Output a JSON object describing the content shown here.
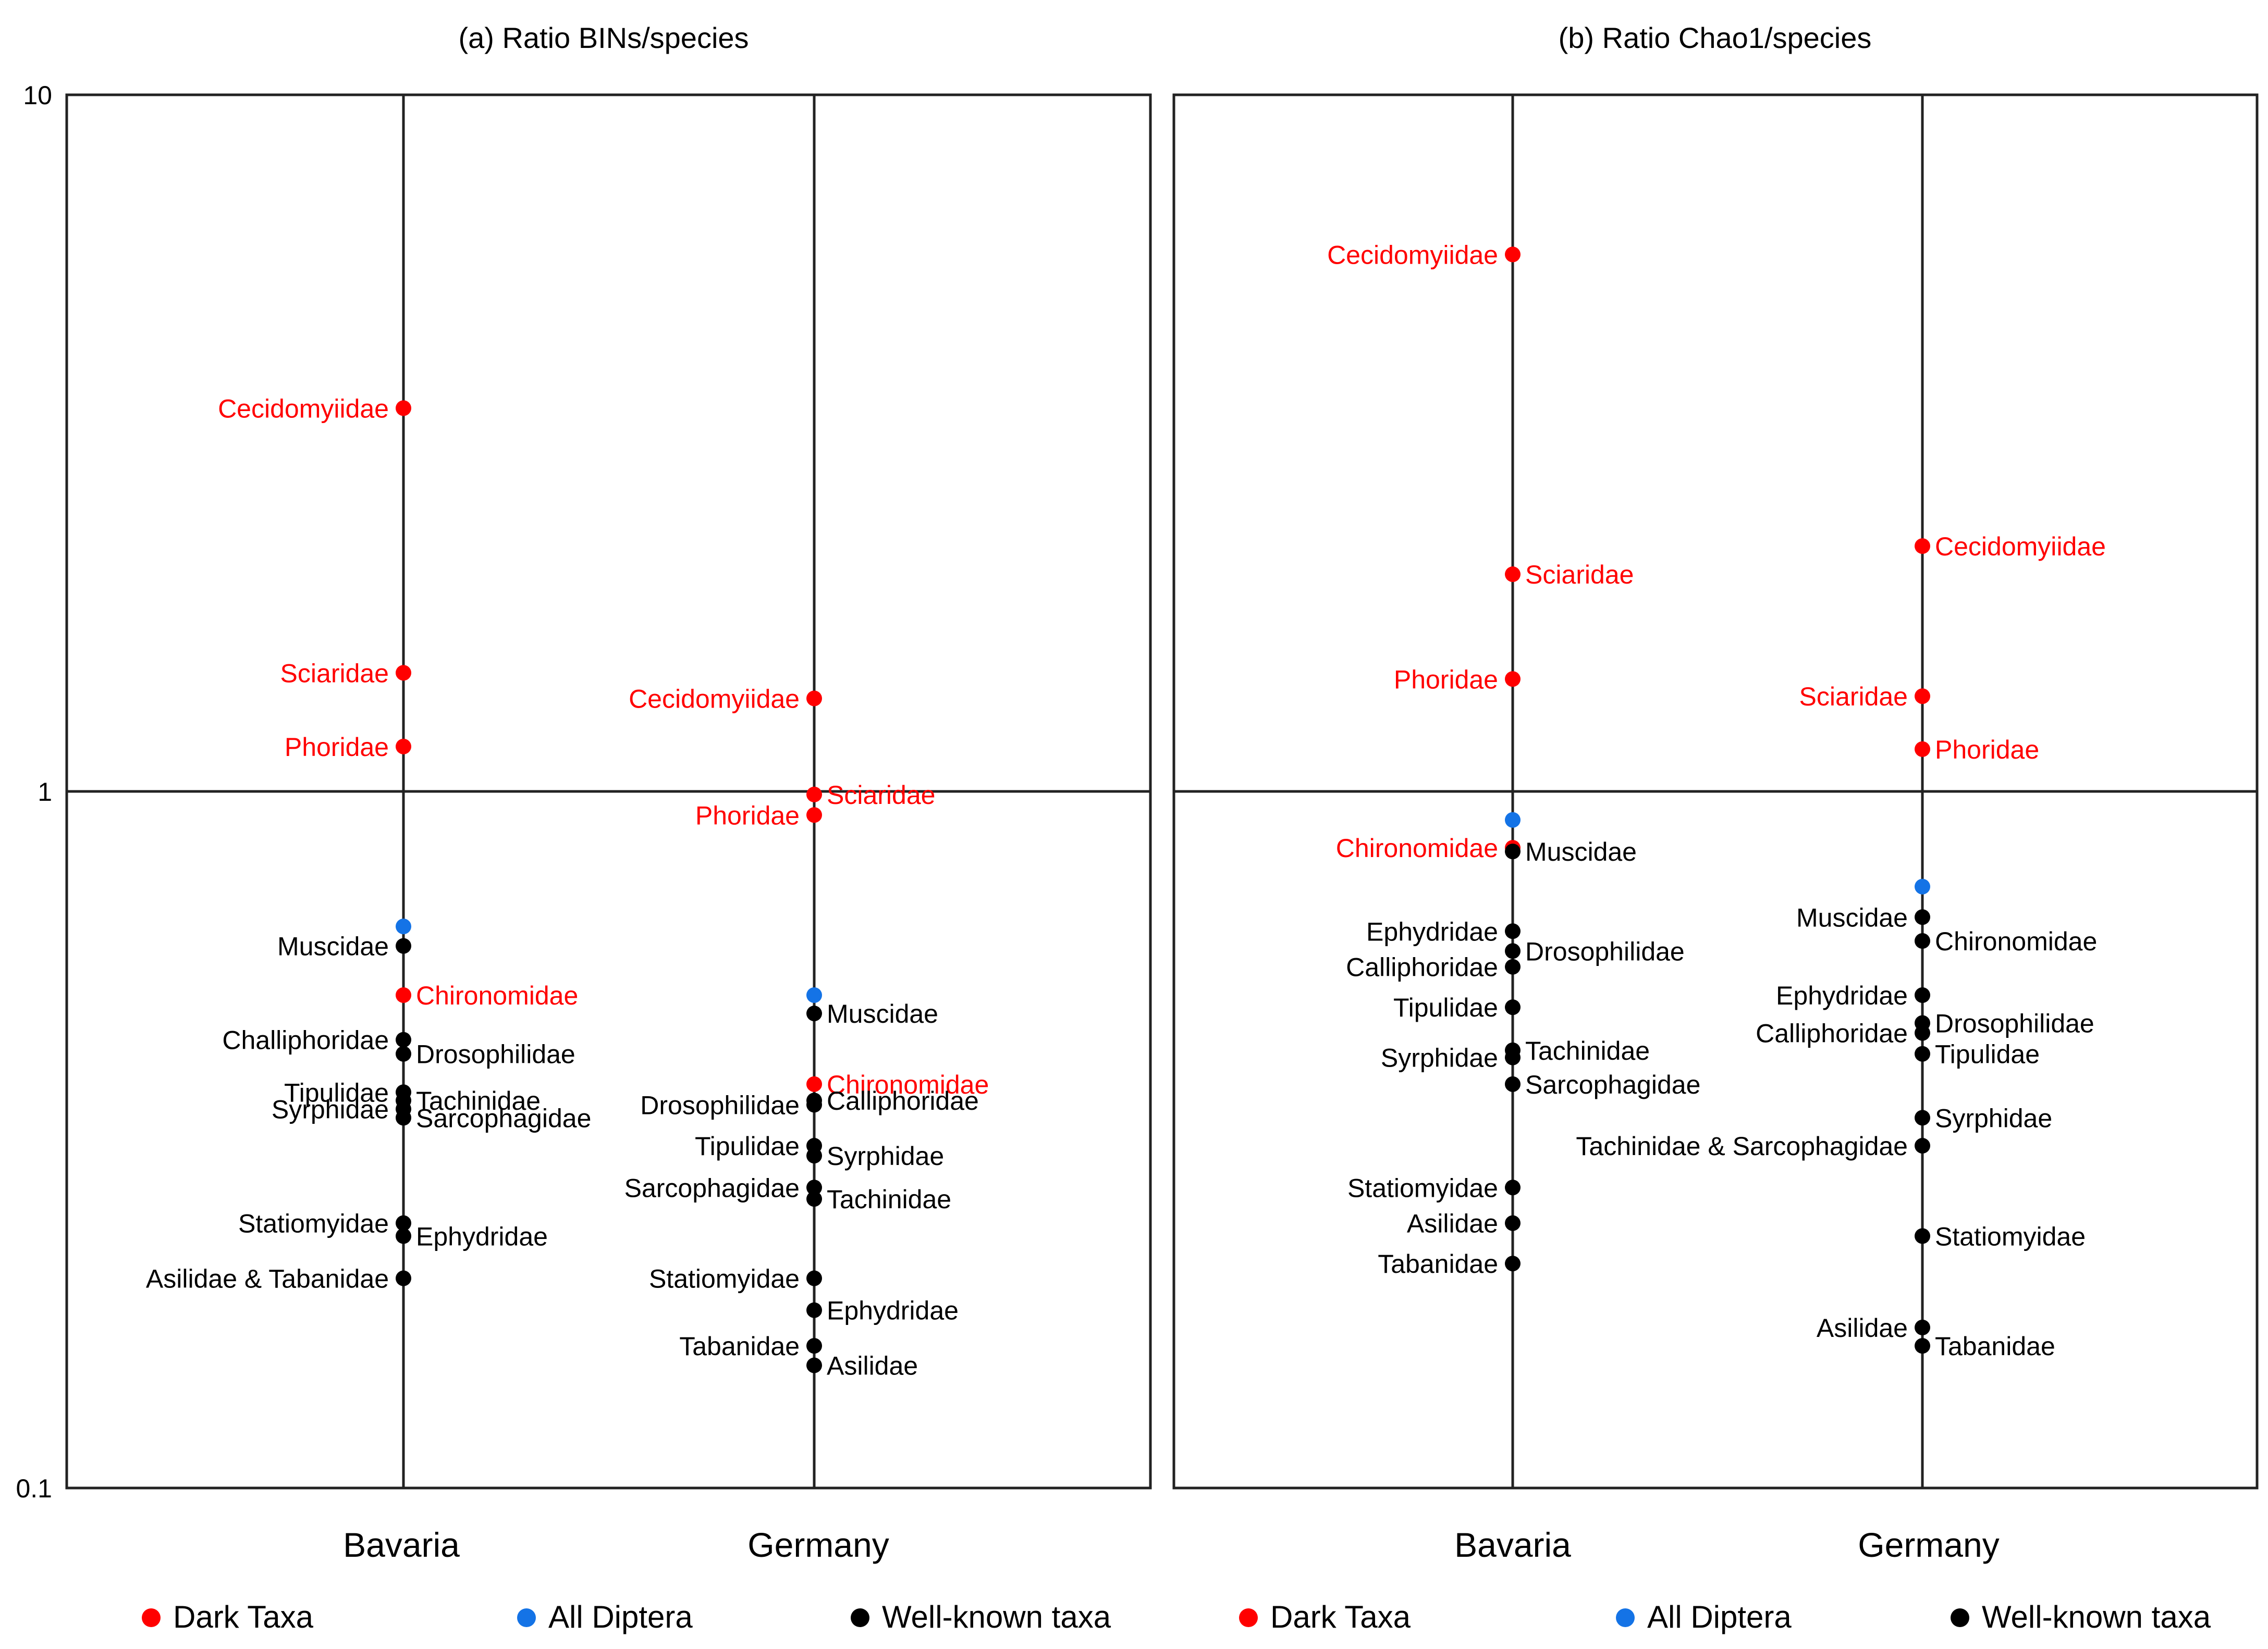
{
  "colors": {
    "dark": "#ff0000",
    "all": "#1473e6",
    "known": "#000000",
    "frame": "#222222"
  },
  "legend": [
    {
      "key": "dark",
      "label": "Dark Taxa"
    },
    {
      "key": "all",
      "label": "All Diptera"
    },
    {
      "key": "known",
      "label": "Well-known taxa"
    }
  ],
  "y_axis": {
    "ticks": [
      {
        "value": 10,
        "label": "10"
      },
      {
        "value": 1,
        "label": "1"
      },
      {
        "value": 0.1,
        "label": "0.1"
      }
    ]
  },
  "chart_data": [
    {
      "type": "scatter",
      "title": "(a) Ratio BINs/species",
      "categories": [
        "Bavaria",
        "Germany"
      ],
      "yscale": "log",
      "ylim": [
        0.1,
        10
      ],
      "reference_line": 1,
      "series": [
        {
          "name": "Dark Taxa",
          "group": "dark",
          "points": [
            {
              "x": "Bavaria",
              "label": "Cecidomyiidae",
              "value": 3.55,
              "side": "left"
            },
            {
              "x": "Bavaria",
              "label": "Sciaridae",
              "value": 1.48,
              "side": "left"
            },
            {
              "x": "Bavaria",
              "label": "Phoridae",
              "value": 1.16,
              "side": "left"
            },
            {
              "x": "Bavaria",
              "label": "Chironomidae",
              "value": 0.51,
              "side": "right"
            },
            {
              "x": "Germany",
              "label": "Cecidomyiidae",
              "value": 1.36,
              "side": "left"
            },
            {
              "x": "Germany",
              "label": "Sciaridae",
              "value": 0.99,
              "side": "right"
            },
            {
              "x": "Germany",
              "label": "Phoridae",
              "value": 0.925,
              "side": "left"
            },
            {
              "x": "Germany",
              "label": "Chironomidae",
              "value": 0.38,
              "side": "right"
            }
          ]
        },
        {
          "name": "All Diptera",
          "group": "all",
          "points": [
            {
              "x": "Bavaria",
              "label": "",
              "value": 0.64
            },
            {
              "x": "Germany",
              "label": "",
              "value": 0.51
            }
          ]
        },
        {
          "name": "Well-known taxa",
          "group": "known",
          "points": [
            {
              "x": "Bavaria",
              "label": "Muscidae",
              "value": 0.6,
              "side": "left"
            },
            {
              "x": "Bavaria",
              "label": "Challiphoridae",
              "value": 0.44,
              "side": "left"
            },
            {
              "x": "Bavaria",
              "label": "Drosophilidae",
              "value": 0.42,
              "side": "right"
            },
            {
              "x": "Bavaria",
              "label": "Tipulidae",
              "value": 0.37,
              "side": "left"
            },
            {
              "x": "Bavaria",
              "label": "Tachinidae",
              "value": 0.36,
              "side": "right"
            },
            {
              "x": "Bavaria",
              "label": "Syrphidae",
              "value": 0.35,
              "side": "left"
            },
            {
              "x": "Bavaria",
              "label": "Sarcophagidae",
              "value": 0.34,
              "side": "right"
            },
            {
              "x": "Bavaria",
              "label": "Statiomyidae",
              "value": 0.24,
              "side": "left"
            },
            {
              "x": "Bavaria",
              "label": "Ephydridae",
              "value": 0.23,
              "side": "right"
            },
            {
              "x": "Bavaria",
              "label": "Asilidae & Tabanidae",
              "value": 0.2,
              "side": "left"
            },
            {
              "x": "Germany",
              "label": "Muscidae",
              "value": 0.48,
              "side": "right"
            },
            {
              "x": "Germany",
              "label": "Calliphoridae",
              "value": 0.36,
              "side": "right"
            },
            {
              "x": "Germany",
              "label": "Drosophilidae",
              "value": 0.355,
              "side": "left"
            },
            {
              "x": "Germany",
              "label": "Tipulidae",
              "value": 0.31,
              "side": "left"
            },
            {
              "x": "Germany",
              "label": "Syrphidae",
              "value": 0.3,
              "side": "right"
            },
            {
              "x": "Germany",
              "label": "Sarcophagidae",
              "value": 0.27,
              "side": "left"
            },
            {
              "x": "Germany",
              "label": "Tachinidae",
              "value": 0.26,
              "side": "right"
            },
            {
              "x": "Germany",
              "label": "Statiomyidae",
              "value": 0.2,
              "side": "left"
            },
            {
              "x": "Germany",
              "label": "Ephydridae",
              "value": 0.18,
              "side": "right"
            },
            {
              "x": "Germany",
              "label": "Tabanidae",
              "value": 0.16,
              "side": "left"
            },
            {
              "x": "Germany",
              "label": "Asilidae",
              "value": 0.15,
              "side": "right"
            }
          ]
        }
      ]
    },
    {
      "type": "scatter",
      "title": "(b) Ratio Chao1/species",
      "categories": [
        "Bavaria",
        "Germany"
      ],
      "yscale": "log",
      "ylim": [
        0.1,
        10
      ],
      "reference_line": 1,
      "series": [
        {
          "name": "Dark Taxa",
          "group": "dark",
          "points": [
            {
              "x": "Bavaria",
              "label": "Cecidomyiidae",
              "value": 5.9,
              "side": "left"
            },
            {
              "x": "Bavaria",
              "label": "Sciaridae",
              "value": 2.05,
              "side": "right"
            },
            {
              "x": "Bavaria",
              "label": "Phoridae",
              "value": 1.45,
              "side": "left"
            },
            {
              "x": "Bavaria",
              "label": "Chironomidae",
              "value": 0.83,
              "side": "left"
            },
            {
              "x": "Germany",
              "label": "Cecidomyiidae",
              "value": 2.25,
              "side": "right"
            },
            {
              "x": "Germany",
              "label": "Sciaridae",
              "value": 1.37,
              "side": "left"
            },
            {
              "x": "Germany",
              "label": "Phoridae",
              "value": 1.15,
              "side": "right"
            }
          ]
        },
        {
          "name": "All Diptera",
          "group": "all",
          "points": [
            {
              "x": "Bavaria",
              "label": "",
              "value": 0.91
            },
            {
              "x": "Germany",
              "label": "",
              "value": 0.73
            }
          ]
        },
        {
          "name": "Well-known taxa",
          "group": "known",
          "points": [
            {
              "x": "Bavaria",
              "label": "Muscidae",
              "value": 0.82,
              "side": "right"
            },
            {
              "x": "Bavaria",
              "label": "Ephydridae",
              "value": 0.63,
              "side": "left"
            },
            {
              "x": "Bavaria",
              "label": "Drosophilidae",
              "value": 0.59,
              "side": "right"
            },
            {
              "x": "Bavaria",
              "label": "Calliphoridae",
              "value": 0.56,
              "side": "left"
            },
            {
              "x": "Bavaria",
              "label": "Tipulidae",
              "value": 0.49,
              "side": "left"
            },
            {
              "x": "Bavaria",
              "label": "Tachinidae",
              "value": 0.425,
              "side": "right"
            },
            {
              "x": "Bavaria",
              "label": "Syrphidae",
              "value": 0.415,
              "side": "left"
            },
            {
              "x": "Bavaria",
              "label": "Sarcophagidae",
              "value": 0.38,
              "side": "right"
            },
            {
              "x": "Bavaria",
              "label": "Statiomyidae",
              "value": 0.27,
              "side": "left"
            },
            {
              "x": "Bavaria",
              "label": "Asilidae",
              "value": 0.24,
              "side": "left"
            },
            {
              "x": "Bavaria",
              "label": "Tabanidae",
              "value": 0.21,
              "side": "left"
            },
            {
              "x": "Germany",
              "label": "Muscidae",
              "value": 0.66,
              "side": "left"
            },
            {
              "x": "Germany",
              "label": "Chironomidae",
              "value": 0.61,
              "side": "right"
            },
            {
              "x": "Germany",
              "label": "Ephydridae",
              "value": 0.51,
              "side": "left"
            },
            {
              "x": "Germany",
              "label": "Drosophilidae",
              "value": 0.465,
              "side": "right"
            },
            {
              "x": "Germany",
              "label": "Calliphoridae",
              "value": 0.45,
              "side": "left"
            },
            {
              "x": "Germany",
              "label": "Tipulidae",
              "value": 0.42,
              "side": "right"
            },
            {
              "x": "Germany",
              "label": "Syrphidae",
              "value": 0.34,
              "side": "right"
            },
            {
              "x": "Germany",
              "label": "Tachinidae & Sarcophagidae",
              "value": 0.31,
              "side": "left"
            },
            {
              "x": "Germany",
              "label": "Statiomyidae",
              "value": 0.23,
              "side": "right"
            },
            {
              "x": "Germany",
              "label": "Asilidae",
              "value": 0.17,
              "side": "left"
            },
            {
              "x": "Germany",
              "label": "Tabanidae",
              "value": 0.16,
              "side": "right"
            }
          ]
        }
      ]
    }
  ]
}
